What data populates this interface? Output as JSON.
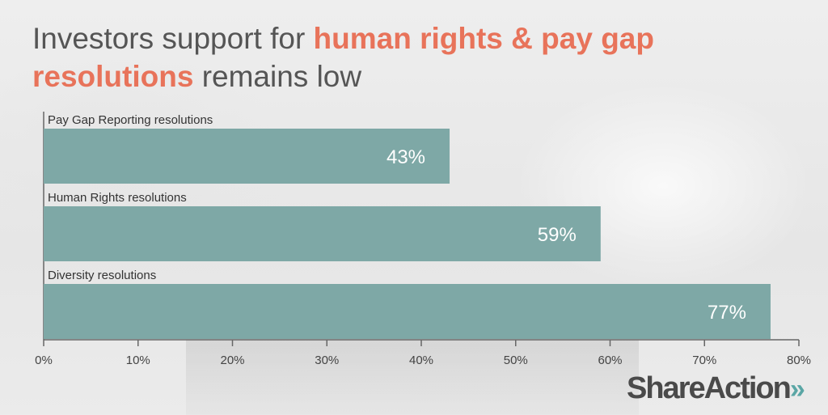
{
  "title": {
    "part1": "Investors support for ",
    "highlight1": "human rights & pay gap",
    "highlight2": "resolutions",
    "part2": " remains low"
  },
  "logo": {
    "text": "ShareAction",
    "arrows": "»"
  },
  "chart_data": {
    "type": "bar",
    "orientation": "horizontal",
    "categories": [
      "Pay Gap Reporting resolutions",
      "Human Rights resolutions",
      "Diversity resolutions"
    ],
    "values": [
      43,
      59,
      77
    ],
    "data_labels": [
      "43%",
      "59%",
      "77%"
    ],
    "xlim": [
      0,
      80
    ],
    "xticks": [
      "0%",
      "10%",
      "20%",
      "30%",
      "40%",
      "50%",
      "60%",
      "70%",
      "80%"
    ],
    "bar_color": "#7ea8a6",
    "grid": false
  }
}
